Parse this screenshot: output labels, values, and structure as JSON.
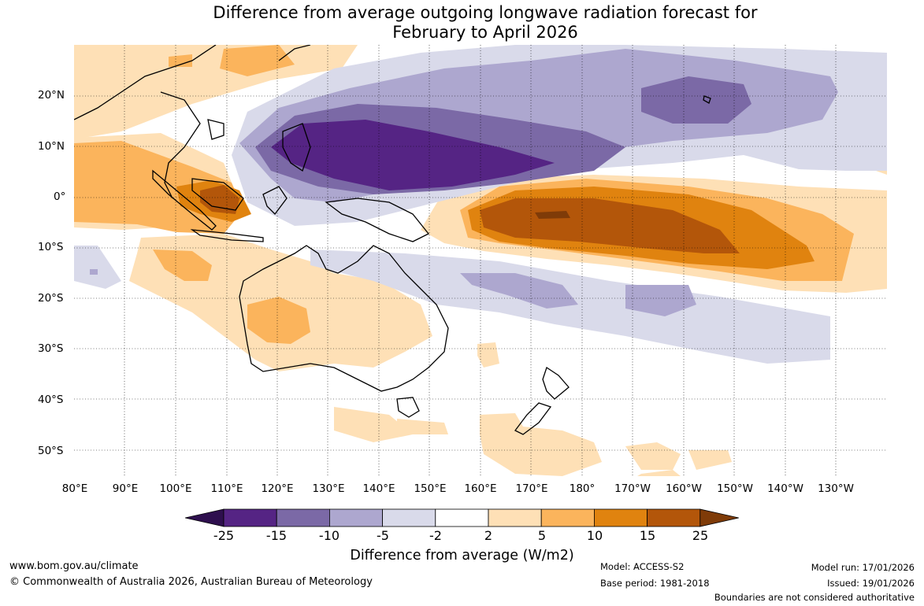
{
  "title": {
    "line1": "Difference from average outgoing longwave radiation forecast for",
    "line2": "February to April 2026"
  },
  "map": {
    "region": "Australia and western Pacific",
    "longitude_labels": [
      "80°E",
      "90°E",
      "100°E",
      "110°E",
      "120°E",
      "130°E",
      "140°E",
      "150°E",
      "160°E",
      "170°E",
      "180°",
      "170°W",
      "160°W",
      "150°W",
      "140°W",
      "130°W"
    ],
    "latitude_labels": [
      "20°N",
      "10°N",
      "0°",
      "10°S",
      "20°S",
      "30°S",
      "40°S",
      "50°S"
    ]
  },
  "legend": {
    "tick_labels": [
      "-25",
      "-15",
      "-10",
      "-5",
      "-2",
      "2",
      "5",
      "10",
      "15",
      "25"
    ],
    "colors": [
      "#2e0f4e",
      "#552484",
      "#7b69a6",
      "#ada7cf",
      "#d9daea",
      "#ffffff",
      "#fee0b6",
      "#fbb45c",
      "#e0830f",
      "#b3560a",
      "#7f3b08"
    ],
    "label": "Difference from average (W/m2)"
  },
  "footer": {
    "website": "www.bom.gov.au/climate",
    "copyright": "© Commonwealth of Australia 2026, Australian Bureau of Meteorology",
    "model": "Model: ACCESS-S2",
    "base_period": "Base period: 1981-2018",
    "model_run": "Model run: 17/01/2026",
    "issued": "Issued: 19/01/2026",
    "disclaimer": "Boundaries are not considered authoritative"
  }
}
